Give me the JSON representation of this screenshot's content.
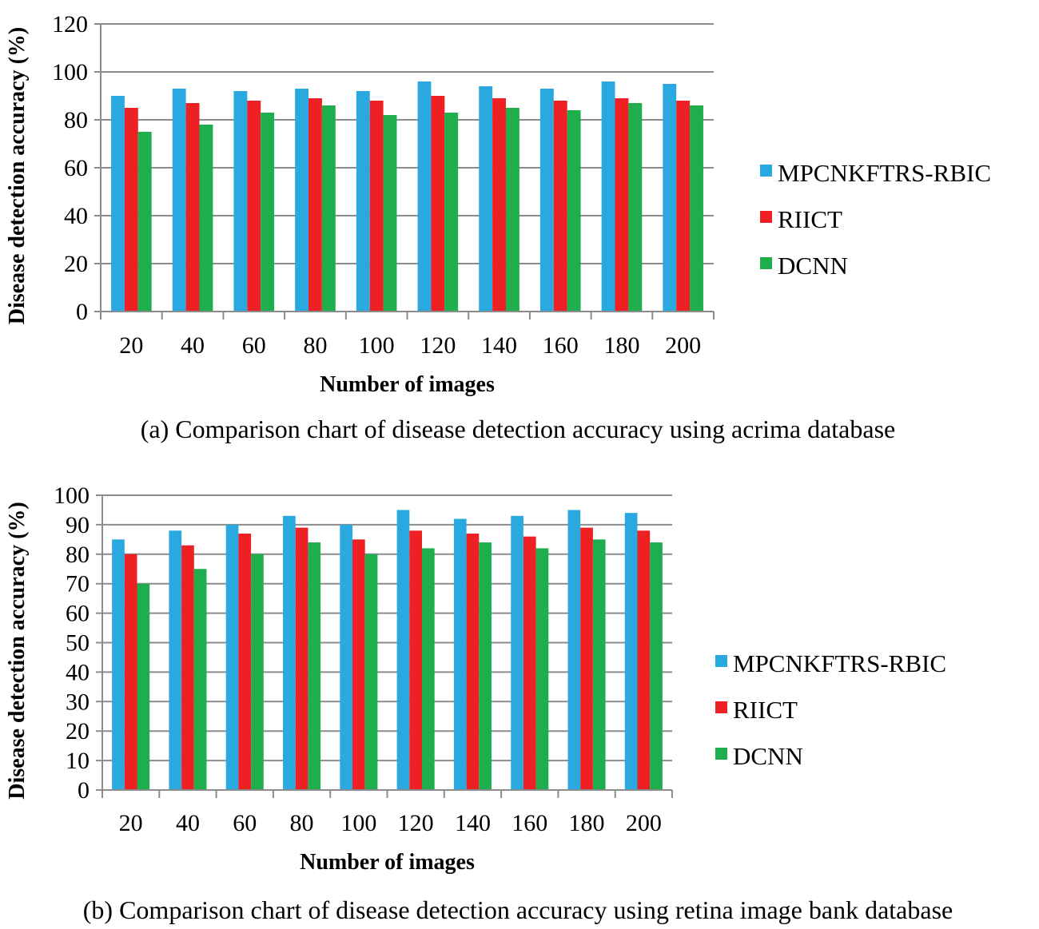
{
  "chart_data": [
    {
      "type": "bar",
      "caption": "(a) Comparison chart of disease detection accuracy using acrima database",
      "xlabel": "Number of images",
      "ylabel": "Disease detection accuracy (%)",
      "ylim": [
        0,
        120
      ],
      "yticks": [
        0,
        20,
        40,
        60,
        80,
        100,
        120
      ],
      "categories": [
        "20",
        "40",
        "60",
        "80",
        "100",
        "120",
        "140",
        "160",
        "180",
        "200"
      ],
      "grid": true,
      "legend_position": "right",
      "series": [
        {
          "name": "MPCNKFTRS-RBIC",
          "color": "#2aa8e0",
          "values": [
            90,
            93,
            92,
            93,
            92,
            96,
            94,
            93,
            96,
            95
          ]
        },
        {
          "name": "RIICT",
          "color": "#ee2024",
          "values": [
            85,
            87,
            88,
            89,
            88,
            90,
            89,
            88,
            89,
            88
          ]
        },
        {
          "name": "DCNN",
          "color": "#1eae4e",
          "values": [
            75,
            78,
            83,
            86,
            82,
            83,
            85,
            84,
            87,
            86
          ]
        }
      ]
    },
    {
      "type": "bar",
      "caption": "(b) Comparison chart of disease detection accuracy using retina image bank database",
      "xlabel": "Number of images",
      "ylabel": "Disease detection accuracy (%)",
      "ylim": [
        0,
        100
      ],
      "yticks": [
        0,
        10,
        20,
        30,
        40,
        50,
        60,
        70,
        80,
        90,
        100
      ],
      "categories": [
        "20",
        "40",
        "60",
        "80",
        "100",
        "120",
        "140",
        "160",
        "180",
        "200"
      ],
      "grid": true,
      "legend_position": "right",
      "series": [
        {
          "name": "MPCNKFTRS-RBIC",
          "color": "#2aa8e0",
          "values": [
            85,
            88,
            90,
            93,
            90,
            95,
            92,
            93,
            95,
            94
          ]
        },
        {
          "name": "RIICT",
          "color": "#ee2024",
          "values": [
            80,
            83,
            87,
            89,
            85,
            88,
            87,
            86,
            89,
            88
          ]
        },
        {
          "name": "DCNN",
          "color": "#1eae4e",
          "values": [
            70,
            75,
            80,
            84,
            80,
            82,
            84,
            82,
            85,
            84
          ]
        }
      ]
    }
  ]
}
